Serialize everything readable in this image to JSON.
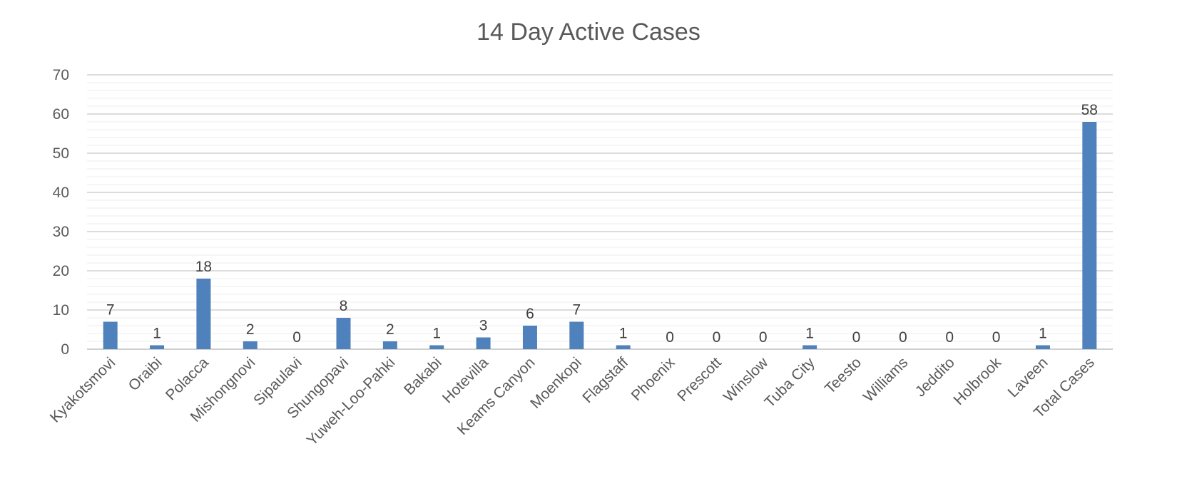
{
  "chart_data": {
    "type": "bar",
    "title": "14 Day Active Cases",
    "categories": [
      "Kyakotsmovi",
      "Oraibi",
      "Polacca",
      "Mishongnovi",
      "Sipaulavi",
      "Shungopavi",
      "Yuweh-Loo-Pahki",
      "Bakabi",
      "Hotevilla",
      "Keams Canyon",
      "Moenkopi",
      "Flagstaff",
      "Phoenix",
      "Prescott",
      "Winslow",
      "Tuba City",
      "Teesto",
      "Williams",
      "Jeddito",
      "Holbrook",
      "Laveen",
      "Total Cases"
    ],
    "values": [
      7,
      1,
      18,
      2,
      0,
      8,
      2,
      1,
      3,
      6,
      7,
      1,
      0,
      0,
      0,
      1,
      0,
      0,
      0,
      0,
      1,
      58
    ],
    "ylim": [
      0,
      70
    ],
    "yticks": [
      "0",
      "10",
      "20",
      "30",
      "40",
      "50",
      "60",
      "70"
    ],
    "grid": true,
    "data_labels": true,
    "bar_color": "#4f81bd"
  }
}
